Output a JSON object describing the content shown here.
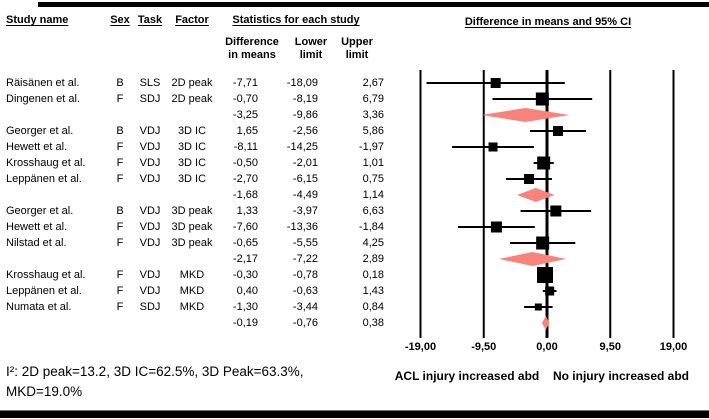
{
  "header": {
    "study": "Study name",
    "sex": "Sex",
    "task": "Task",
    "factor": "Factor",
    "stats_group": "Statistics for each study",
    "col_diff": "Difference\nin means",
    "col_lower": "Lower\nlimit",
    "col_upper": "Upper\nlimit",
    "plot_title": "Difference in means and 95% CI"
  },
  "chart_data": {
    "type": "scatter",
    "subtype": "forest-plot",
    "title": "Difference in means and 95% CI",
    "x_axis": {
      "range": [
        -19,
        19
      ],
      "ticks": [
        {
          "label": "-19,00",
          "value": -19
        },
        {
          "label": "-9,50",
          "value": -9.5
        },
        {
          "label": "0,00",
          "value": 0
        },
        {
          "label": "9,50",
          "value": 9.5
        },
        {
          "label": "19,00",
          "value": 19
        }
      ]
    },
    "direction_labels": {
      "left": "ACL injury increased abd",
      "right": "No injury increased abd"
    },
    "rows": [
      {
        "kind": "study",
        "study": "Räisänen et al.",
        "sex": "B",
        "task": "SLS",
        "factor": "2D peak",
        "diff": "-7,71",
        "lower": "-18,09",
        "upper": "2,67",
        "mean": -7.71,
        "ci": [
          -18.09,
          2.67
        ],
        "marker_size": 10
      },
      {
        "kind": "study",
        "study": "Dingenen et al.",
        "sex": "F",
        "task": "SDJ",
        "factor": "2D peak",
        "diff": "-0,70",
        "lower": "-8,19",
        "upper": "6,79",
        "mean": -0.7,
        "ci": [
          -8.19,
          6.79
        ],
        "marker_size": 13
      },
      {
        "kind": "summary",
        "group": "2D peak",
        "diff": "-3,25",
        "lower": "-9,86",
        "upper": "3,36",
        "mean": -3.25,
        "ci": [
          -9.86,
          3.36
        ]
      },
      {
        "kind": "study",
        "study": "Georger et al.",
        "sex": "B",
        "task": "VDJ",
        "factor": "3D IC",
        "diff": "1,65",
        "lower": "-2,56",
        "upper": "5,86",
        "mean": 1.65,
        "ci": [
          -2.56,
          5.86
        ],
        "marker_size": 10
      },
      {
        "kind": "study",
        "study": "Hewett et al.",
        "sex": "F",
        "task": "VDJ",
        "factor": "3D IC",
        "diff": "-8,11",
        "lower": "-14,25",
        "upper": "-1,97",
        "mean": -8.11,
        "ci": [
          -14.25,
          -1.97
        ],
        "marker_size": 9
      },
      {
        "kind": "study",
        "study": "Krosshaug et al.",
        "sex": "F",
        "task": "VDJ",
        "factor": "3D IC",
        "diff": "-0,50",
        "lower": "-2,01",
        "upper": "1,01",
        "mean": -0.5,
        "ci": [
          -2.01,
          1.01
        ],
        "marker_size": 13
      },
      {
        "kind": "study",
        "study": "Leppänen et al.",
        "sex": "F",
        "task": "VDJ",
        "factor": "3D IC",
        "diff": "-2,70",
        "lower": "-6,15",
        "upper": "0,75",
        "mean": -2.7,
        "ci": [
          -6.15,
          0.75
        ],
        "marker_size": 10
      },
      {
        "kind": "summary",
        "group": "3D IC",
        "diff": "-1,68",
        "lower": "-4,49",
        "upper": "1,14",
        "mean": -1.68,
        "ci": [
          -4.49,
          1.14
        ]
      },
      {
        "kind": "study",
        "study": "Georger et al.",
        "sex": "B",
        "task": "VDJ",
        "factor": "3D peak",
        "diff": "1,33",
        "lower": "-3,97",
        "upper": "6,63",
        "mean": 1.33,
        "ci": [
          -3.97,
          6.63
        ],
        "marker_size": 11
      },
      {
        "kind": "study",
        "study": "Hewett et al.",
        "sex": "F",
        "task": "VDJ",
        "factor": "3D peak",
        "diff": "-7,60",
        "lower": "-13,36",
        "upper": "-1,84",
        "mean": -7.6,
        "ci": [
          -13.36,
          -1.84
        ],
        "marker_size": 11
      },
      {
        "kind": "study",
        "study": "Nilstad et al.",
        "sex": "F",
        "task": "VDJ",
        "factor": "3D peak",
        "diff": "-0,65",
        "lower": "-5,55",
        "upper": "4,25",
        "mean": -0.65,
        "ci": [
          -5.55,
          4.25
        ],
        "marker_size": 13
      },
      {
        "kind": "summary",
        "group": "3D peak",
        "diff": "-2,17",
        "lower": "-7,22",
        "upper": "2,89",
        "mean": -2.17,
        "ci": [
          -7.22,
          2.89
        ]
      },
      {
        "kind": "study",
        "study": "Krosshaug et al.",
        "sex": "F",
        "task": "VDJ",
        "factor": "MKD",
        "diff": "-0,30",
        "lower": "-0,78",
        "upper": "0,18",
        "mean": -0.3,
        "ci": [
          -0.78,
          0.18
        ],
        "marker_size": 16
      },
      {
        "kind": "study",
        "study": "Leppänen et al.",
        "sex": "F",
        "task": "VDJ",
        "factor": "MKD",
        "diff": "0,40",
        "lower": "-0,63",
        "upper": "1,43",
        "mean": 0.4,
        "ci": [
          -0.63,
          1.43
        ],
        "marker_size": 9
      },
      {
        "kind": "study",
        "study": "Numata et al.",
        "sex": "F",
        "task": "SDJ",
        "factor": "MKD",
        "diff": "-1,30",
        "lower": "-3,44",
        "upper": "0,84",
        "mean": -1.3,
        "ci": [
          -3.44,
          0.84
        ],
        "marker_size": 7
      },
      {
        "kind": "summary",
        "group": "MKD",
        "diff": "-0,19",
        "lower": "-0,76",
        "upper": "0,38",
        "mean": -0.19,
        "ci": [
          -0.76,
          0.38
        ]
      }
    ]
  },
  "footnote": {
    "line1": "I²: 2D peak=13.2, 3D IC=62.5%, 3D Peak=63.3%,",
    "line2": "MKD=19.0%"
  },
  "colors": {
    "diamond": "#F9827A",
    "marker": "#000000",
    "ci_line": "#000000",
    "gridline": "#000000"
  }
}
